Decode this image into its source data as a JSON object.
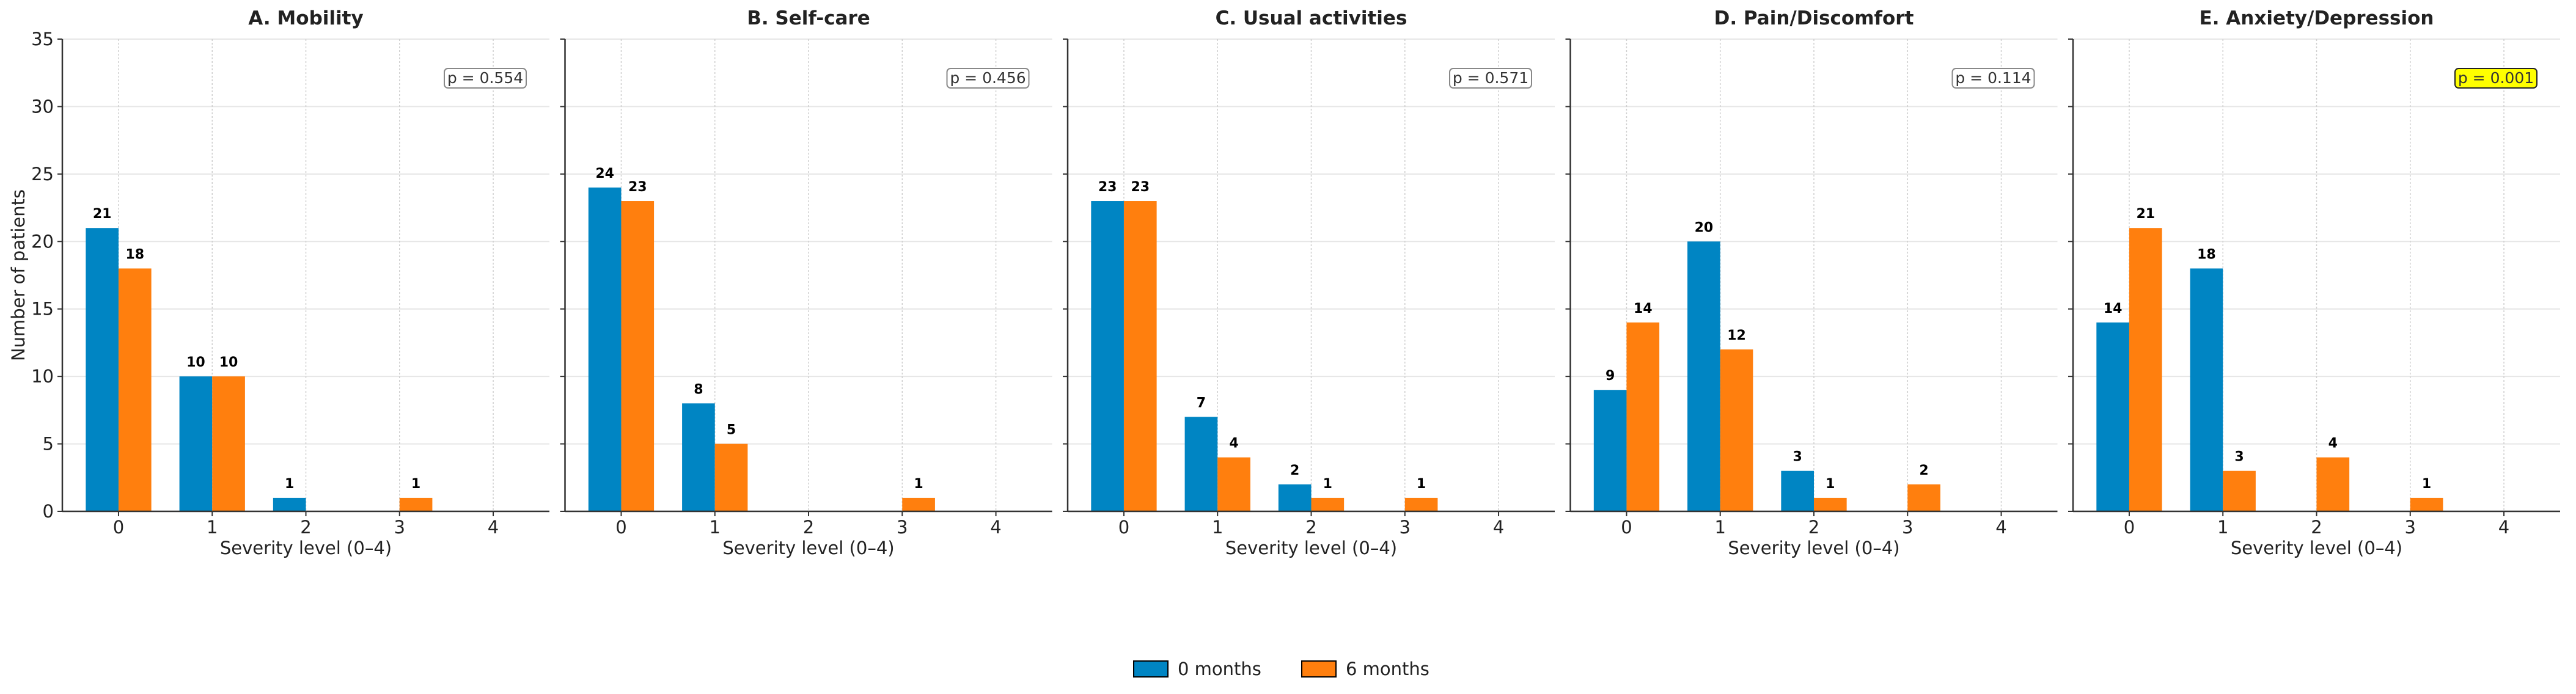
{
  "chart_data": {
    "type": "bar",
    "ylabel": "Number of patients",
    "ylim": [
      0,
      35
    ],
    "yticks": [
      0,
      5,
      10,
      15,
      20,
      25,
      30,
      35
    ],
    "xlim": [
      -0.6,
      4.6
    ],
    "categories": [
      "0",
      "1",
      "2",
      "3",
      "4"
    ],
    "xlabel": "Severity level (0–4)",
    "grid": true,
    "legend": {
      "placement": "bottom-center",
      "entries": [
        "0 months",
        "6 months"
      ]
    },
    "series_colors": {
      "0 months": "#0085C3",
      "6 months": "#FF7F0E"
    },
    "highlight_color": "#FFFF00",
    "panels": [
      {
        "title": "A. Mobility",
        "p_value": "p = 0.554",
        "significant": false,
        "series": [
          {
            "name": "0 months",
            "values": [
              21,
              10,
              1,
              0,
              0
            ]
          },
          {
            "name": "6 months",
            "values": [
              18,
              10,
              0,
              1,
              0
            ]
          }
        ]
      },
      {
        "title": "B. Self-care",
        "p_value": "p = 0.456",
        "significant": false,
        "series": [
          {
            "name": "0 months",
            "values": [
              24,
              8,
              0,
              0,
              0
            ]
          },
          {
            "name": "6 months",
            "values": [
              23,
              5,
              0,
              1,
              0
            ]
          }
        ]
      },
      {
        "title": "C. Usual activities",
        "p_value": "p = 0.571",
        "significant": false,
        "series": [
          {
            "name": "0 months",
            "values": [
              23,
              7,
              2,
              0,
              0
            ]
          },
          {
            "name": "6 months",
            "values": [
              23,
              4,
              1,
              1,
              0
            ]
          }
        ]
      },
      {
        "title": "D. Pain/Discomfort",
        "p_value": "p = 0.114",
        "significant": false,
        "series": [
          {
            "name": "0 months",
            "values": [
              9,
              20,
              3,
              0,
              0
            ]
          },
          {
            "name": "6 months",
            "values": [
              14,
              12,
              1,
              2,
              0
            ]
          }
        ]
      },
      {
        "title": "E. Anxiety/Depression",
        "p_value": "p = 0.001",
        "significant": true,
        "series": [
          {
            "name": "0 months",
            "values": [
              14,
              18,
              0,
              0,
              0
            ]
          },
          {
            "name": "6 months",
            "values": [
              21,
              3,
              4,
              1,
              0
            ]
          }
        ]
      }
    ]
  }
}
